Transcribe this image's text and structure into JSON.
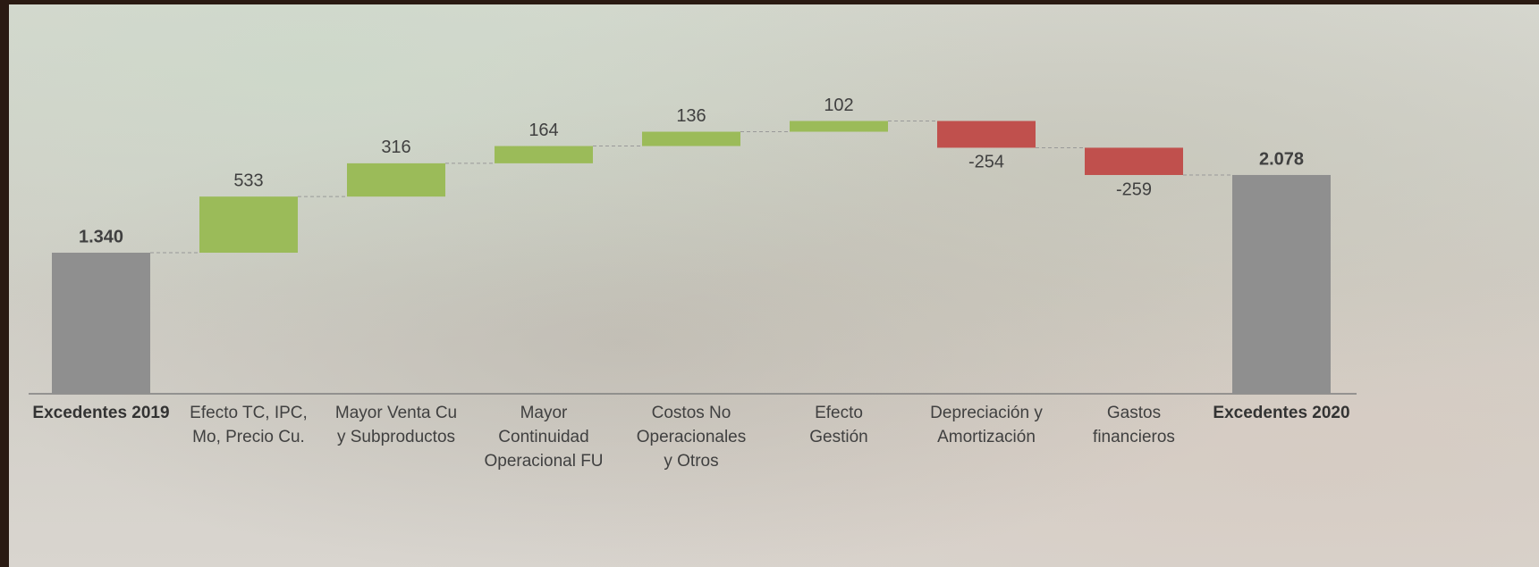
{
  "chart_data": {
    "type": "waterfall",
    "categories": [
      "Excedentes 2019",
      "Efecto TC, IPC,\nMo, Precio Cu.",
      "Mayor Venta Cu\ny Subproductos",
      "Mayor\nContinuidad\nOperacional FU",
      "Costos No\nOperacionales\ny Otros",
      "Efecto\nGestión",
      "Depreciación y\nAmortización",
      "Gastos\nfinancieros",
      "Excedentes 2020"
    ],
    "values": [
      1340,
      533,
      316,
      164,
      136,
      102,
      -254,
      -259,
      2078
    ],
    "value_labels": [
      "1.340",
      "533",
      "316",
      "164",
      "136",
      "102",
      "-254",
      "-259",
      "2.078"
    ],
    "is_total": [
      true,
      false,
      false,
      false,
      false,
      false,
      false,
      false,
      true
    ],
    "colors": {
      "total": "#8f8f8f",
      "increase": "#9bbb59",
      "decrease": "#c0504d"
    }
  }
}
